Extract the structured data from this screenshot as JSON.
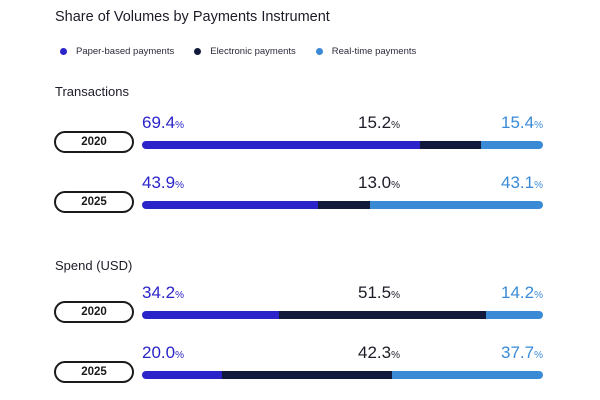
{
  "title": "Share of Volumes by Payments Instrument",
  "colors": {
    "paper": "#2b24c8",
    "electronic": "#111a3a",
    "realtime": "#3a8ad6"
  },
  "legend": [
    {
      "label": "Paper-based payments",
      "color": "#2b24c8"
    },
    {
      "label": "Electronic payments",
      "color": "#111a3a"
    },
    {
      "label": "Real-time payments",
      "color": "#3a8ad6"
    }
  ],
  "percent_symbol": "%",
  "chart_data": [
    {
      "type": "bar",
      "stacked": true,
      "title": "Transactions",
      "categories": [
        "2020",
        "2025"
      ],
      "series": [
        {
          "name": "Paper-based payments",
          "values": [
            69.4,
            43.9
          ],
          "labels": [
            "69.4",
            "43.9"
          ]
        },
        {
          "name": "Electronic payments",
          "values": [
            15.2,
            13.0
          ],
          "labels": [
            "15.2",
            "13.0"
          ]
        },
        {
          "name": "Real-time payments",
          "values": [
            15.4,
            43.1
          ],
          "labels": [
            "15.4",
            "43.1"
          ]
        }
      ]
    },
    {
      "type": "bar",
      "stacked": true,
      "title": "Spend (USD)",
      "categories": [
        "2020",
        "2025"
      ],
      "series": [
        {
          "name": "Paper-based payments",
          "values": [
            34.2,
            20.0
          ],
          "labels": [
            "34.2",
            "20.0"
          ]
        },
        {
          "name": "Electronic payments",
          "values": [
            51.5,
            42.3
          ],
          "labels": [
            "51.5",
            "42.3"
          ]
        },
        {
          "name": "Real-time payments",
          "values": [
            14.2,
            37.7
          ],
          "labels": [
            "14.2",
            "37.7"
          ]
        }
      ]
    }
  ]
}
